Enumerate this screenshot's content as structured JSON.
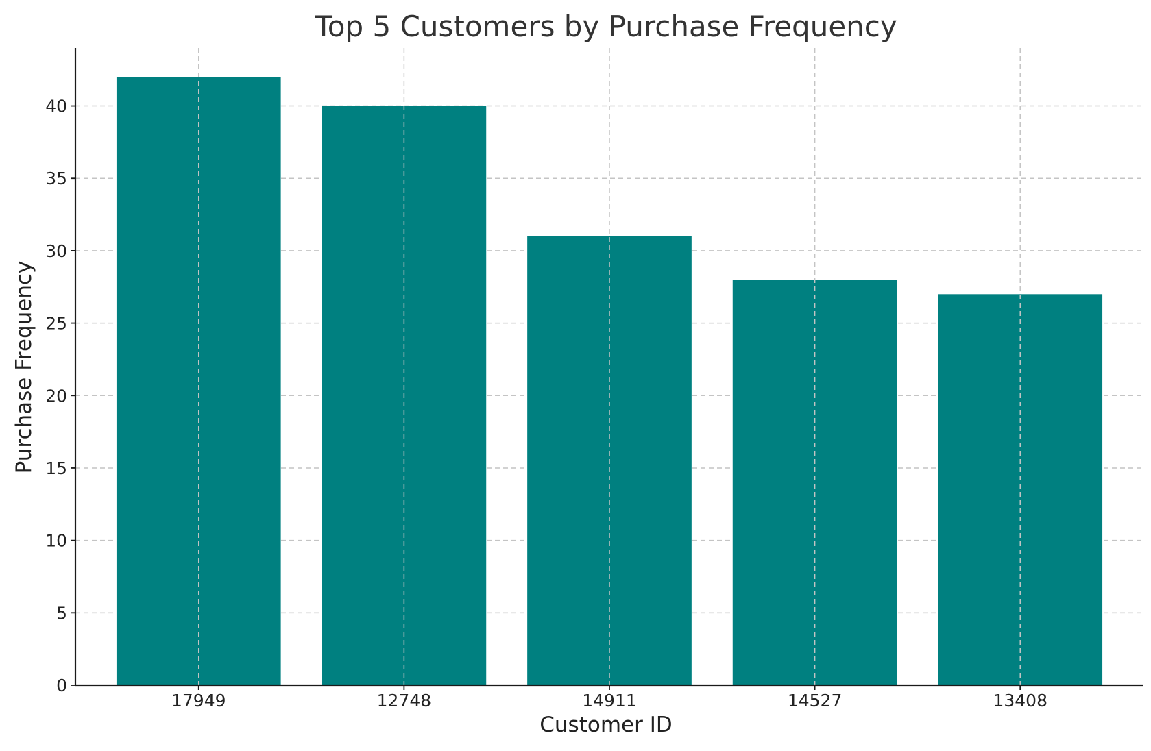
{
  "chart_data": {
    "type": "bar",
    "title": "Top 5 Customers by Purchase Frequency",
    "xlabel": "Customer ID",
    "ylabel": "Purchase Frequency",
    "categories": [
      "17949",
      "12748",
      "14911",
      "14527",
      "13408"
    ],
    "values": [
      42,
      40,
      31,
      28,
      27
    ],
    "ylim": [
      0,
      44
    ],
    "yticks": [
      0,
      5,
      10,
      15,
      20,
      25,
      30,
      35,
      40
    ],
    "grid": true,
    "bar_color": "#008080",
    "grid_color": "#c4c4c4"
  }
}
